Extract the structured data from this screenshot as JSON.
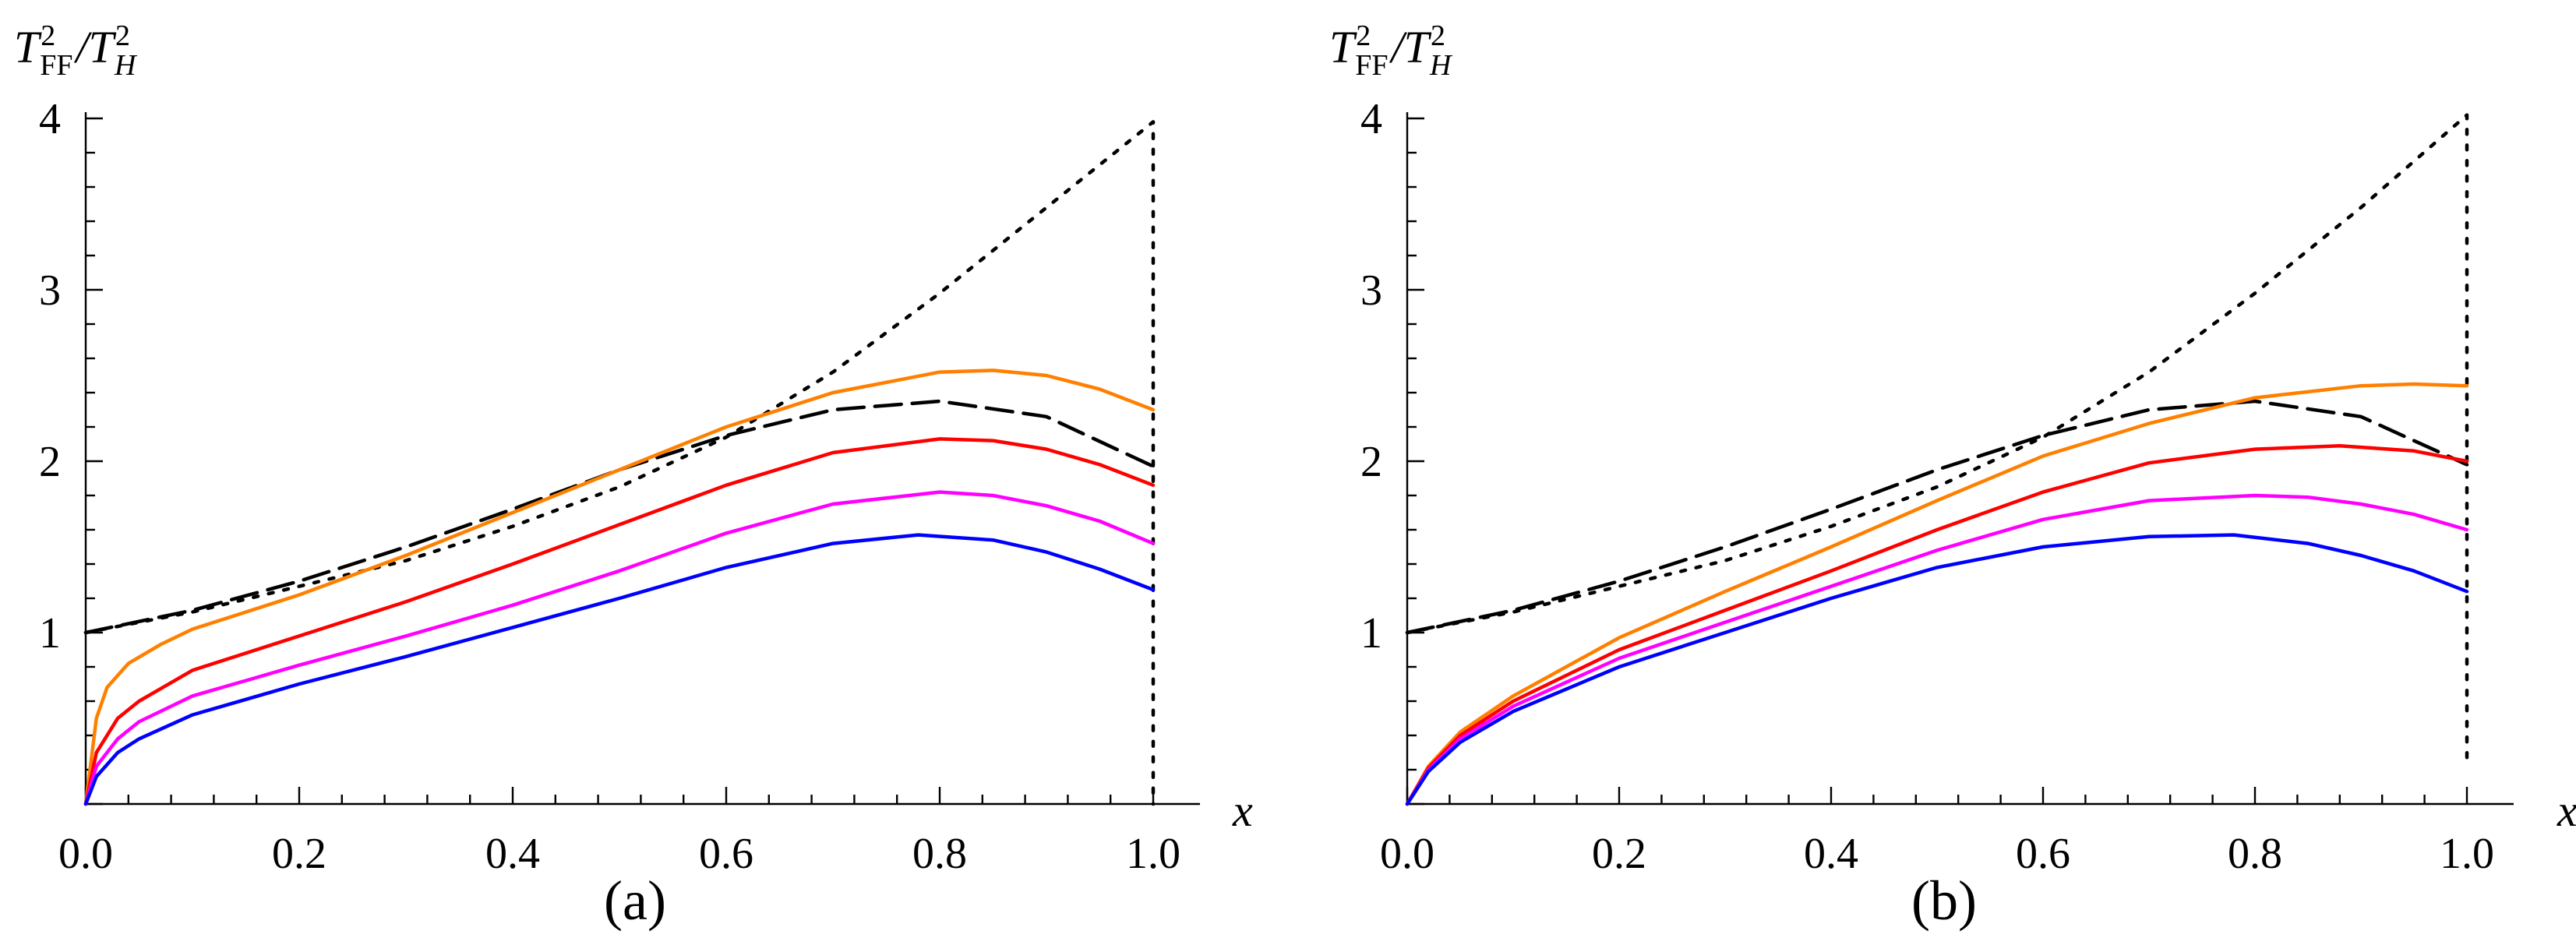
{
  "chart_data": [
    {
      "type": "line",
      "panel_label": "(a)",
      "ylabel": {
        "base1": "T",
        "sub1": "FF",
        "sup1": "2",
        "slash": "/",
        "base2": "T",
        "sub2": "H",
        "sup2": "2"
      },
      "xlabel": "x",
      "xlim": [
        0.0,
        1.0
      ],
      "ylim": [
        0,
        4
      ],
      "x_ticks": [
        "0.0",
        "0.2",
        "0.4",
        "0.6",
        "0.8",
        "1.0"
      ],
      "y_ticks": [
        "1",
        "2",
        "3",
        "4"
      ],
      "series": [
        {
          "name": "dotted",
          "color": "#000000",
          "style": "dotted",
          "x": [
            0,
            0.1,
            0.2,
            0.3,
            0.4,
            0.5,
            0.6,
            0.7,
            0.8,
            0.9,
            1.0,
            1.0
          ],
          "y": [
            1.0,
            1.12,
            1.27,
            1.42,
            1.62,
            1.85,
            2.14,
            2.52,
            2.98,
            3.48,
            3.98,
            0.0
          ]
        },
        {
          "name": "dashed",
          "color": "#000000",
          "style": "dashed",
          "x": [
            0,
            0.1,
            0.2,
            0.3,
            0.4,
            0.5,
            0.6,
            0.7,
            0.8,
            0.9,
            1.0
          ],
          "y": [
            1.0,
            1.13,
            1.3,
            1.5,
            1.72,
            1.95,
            2.15,
            2.3,
            2.35,
            2.26,
            1.97
          ]
        },
        {
          "name": "orange",
          "color": "#ff8000",
          "style": "solid",
          "x": [
            0,
            0.01,
            0.02,
            0.04,
            0.07,
            0.1,
            0.15,
            0.2,
            0.3,
            0.4,
            0.5,
            0.6,
            0.7,
            0.8,
            0.85,
            0.9,
            0.95,
            1.0
          ],
          "y": [
            0.0,
            0.5,
            0.68,
            0.82,
            0.93,
            1.02,
            1.12,
            1.22,
            1.45,
            1.7,
            1.95,
            2.2,
            2.4,
            2.52,
            2.53,
            2.5,
            2.42,
            2.3
          ]
        },
        {
          "name": "red",
          "color": "#ff0000",
          "style": "solid",
          "x": [
            0,
            0.01,
            0.03,
            0.05,
            0.1,
            0.15,
            0.2,
            0.3,
            0.4,
            0.5,
            0.6,
            0.7,
            0.8,
            0.85,
            0.9,
            0.95,
            1.0
          ],
          "y": [
            0.0,
            0.3,
            0.5,
            0.6,
            0.78,
            0.88,
            0.98,
            1.18,
            1.4,
            1.63,
            1.86,
            2.05,
            2.13,
            2.12,
            2.07,
            1.98,
            1.86
          ]
        },
        {
          "name": "magenta",
          "color": "#ff00ff",
          "style": "solid",
          "x": [
            0,
            0.01,
            0.03,
            0.05,
            0.1,
            0.15,
            0.2,
            0.3,
            0.4,
            0.5,
            0.6,
            0.7,
            0.8,
            0.85,
            0.9,
            0.95,
            1.0
          ],
          "y": [
            0.0,
            0.22,
            0.38,
            0.48,
            0.63,
            0.72,
            0.81,
            0.98,
            1.16,
            1.36,
            1.58,
            1.75,
            1.82,
            1.8,
            1.74,
            1.65,
            1.52
          ]
        },
        {
          "name": "blue",
          "color": "#0000ff",
          "style": "solid",
          "x": [
            0,
            0.01,
            0.03,
            0.05,
            0.1,
            0.15,
            0.2,
            0.3,
            0.4,
            0.5,
            0.6,
            0.7,
            0.78,
            0.85,
            0.9,
            0.95,
            1.0
          ],
          "y": [
            0.0,
            0.16,
            0.3,
            0.38,
            0.52,
            0.61,
            0.7,
            0.86,
            1.03,
            1.2,
            1.38,
            1.52,
            1.57,
            1.54,
            1.47,
            1.37,
            1.25
          ]
        }
      ]
    },
    {
      "type": "line",
      "panel_label": "(b)",
      "ylabel": {
        "base1": "T",
        "sub1": "FF",
        "sup1": "2",
        "slash": "/",
        "base2": "T",
        "sub2": "H",
        "sup2": "2"
      },
      "xlabel": "x",
      "xlim": [
        0.0,
        1.0
      ],
      "ylim": [
        0,
        4
      ],
      "x_ticks": [
        "0.0",
        "0.2",
        "0.4",
        "0.6",
        "0.8",
        "1.0"
      ],
      "y_ticks": [
        "1",
        "2",
        "3",
        "4"
      ],
      "series": [
        {
          "name": "dotted",
          "color": "#000000",
          "style": "dotted",
          "x": [
            0,
            0.1,
            0.2,
            0.3,
            0.4,
            0.5,
            0.6,
            0.7,
            0.8,
            0.9,
            1.0,
            1.0
          ],
          "y": [
            1.0,
            1.12,
            1.27,
            1.42,
            1.62,
            1.85,
            2.14,
            2.52,
            2.98,
            3.48,
            4.02,
            0.25
          ]
        },
        {
          "name": "dashed",
          "color": "#000000",
          "style": "dashed",
          "x": [
            0,
            0.1,
            0.2,
            0.3,
            0.4,
            0.5,
            0.6,
            0.7,
            0.8,
            0.9,
            1.0
          ],
          "y": [
            1.0,
            1.13,
            1.3,
            1.5,
            1.72,
            1.95,
            2.15,
            2.3,
            2.35,
            2.26,
            1.98
          ]
        },
        {
          "name": "orange",
          "color": "#ff8000",
          "style": "solid",
          "x": [
            0,
            0.02,
            0.05,
            0.1,
            0.2,
            0.3,
            0.4,
            0.5,
            0.6,
            0.7,
            0.8,
            0.9,
            0.95,
            1.0
          ],
          "y": [
            0.0,
            0.22,
            0.42,
            0.63,
            0.97,
            1.24,
            1.5,
            1.77,
            2.03,
            2.22,
            2.37,
            2.44,
            2.45,
            2.44
          ]
        },
        {
          "name": "red",
          "color": "#ff0000",
          "style": "solid",
          "x": [
            0,
            0.02,
            0.05,
            0.1,
            0.2,
            0.3,
            0.4,
            0.5,
            0.6,
            0.7,
            0.8,
            0.88,
            0.95,
            1.0
          ],
          "y": [
            0.0,
            0.21,
            0.4,
            0.6,
            0.9,
            1.13,
            1.36,
            1.6,
            1.82,
            1.99,
            2.07,
            2.09,
            2.06,
            2.0
          ]
        },
        {
          "name": "magenta",
          "color": "#ff00ff",
          "style": "solid",
          "x": [
            0,
            0.02,
            0.05,
            0.1,
            0.2,
            0.3,
            0.4,
            0.5,
            0.6,
            0.7,
            0.8,
            0.85,
            0.9,
            0.95,
            1.0
          ],
          "y": [
            0.0,
            0.2,
            0.38,
            0.57,
            0.85,
            1.06,
            1.27,
            1.48,
            1.66,
            1.77,
            1.8,
            1.79,
            1.75,
            1.69,
            1.6
          ]
        },
        {
          "name": "blue",
          "color": "#0000ff",
          "style": "solid",
          "x": [
            0,
            0.02,
            0.05,
            0.1,
            0.2,
            0.3,
            0.4,
            0.5,
            0.6,
            0.7,
            0.78,
            0.85,
            0.9,
            0.95,
            1.0
          ],
          "y": [
            0.0,
            0.19,
            0.36,
            0.54,
            0.8,
            1.0,
            1.2,
            1.38,
            1.5,
            1.56,
            1.57,
            1.52,
            1.45,
            1.36,
            1.24
          ]
        }
      ]
    }
  ]
}
